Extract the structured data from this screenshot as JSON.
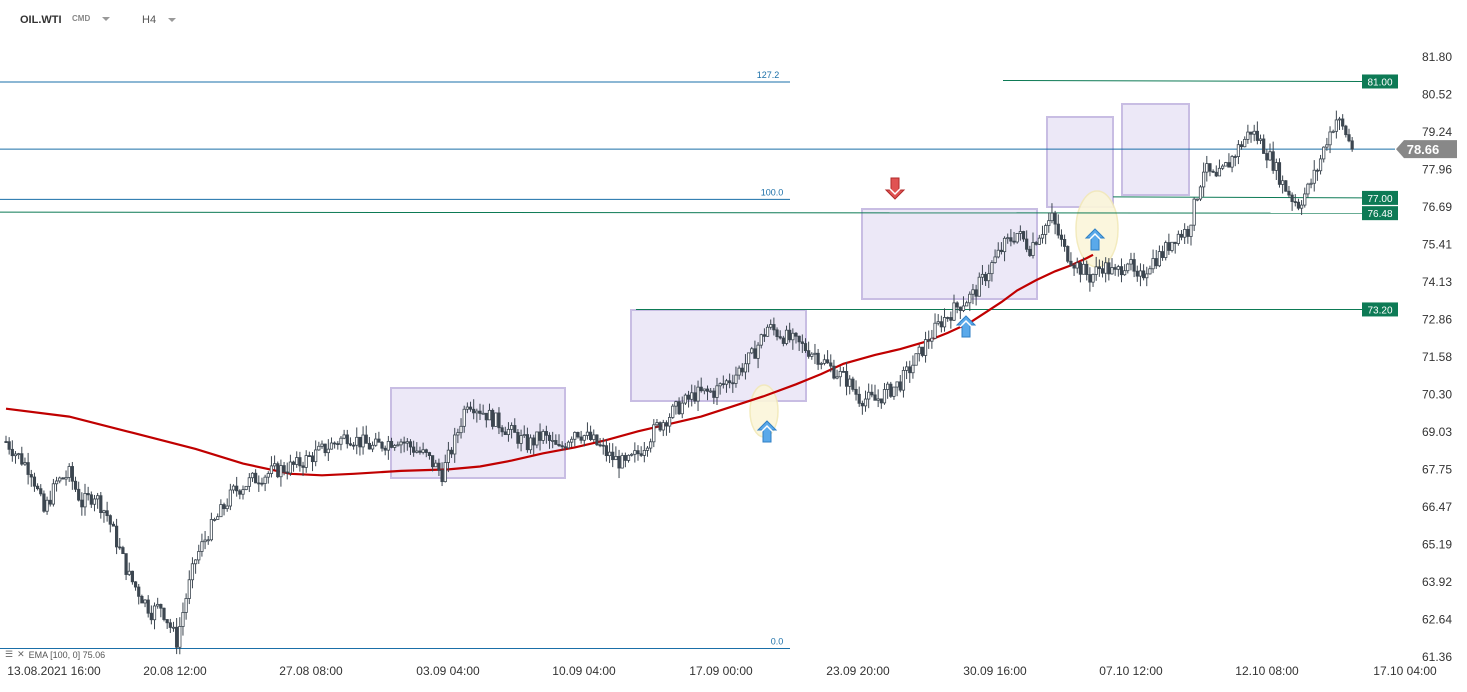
{
  "header": {
    "symbol": "OIL.WTI",
    "instrument_type": "CMD",
    "timeframe": "H4"
  },
  "indicator_legend": {
    "menu_icon": "hamburger-icon",
    "close_icon": "close-icon",
    "text": "EMA  [100,  0]  75.06"
  },
  "colors": {
    "bull": "#ffffff",
    "bear": "#3c4650",
    "ema": "#c00000",
    "fib": "#1a6fa8",
    "level": "#0d7a55",
    "level_tag_bg": "#0d7a55",
    "price_tag_bg": "#888888",
    "box_fill": "#ece8f7",
    "box_stroke": "#c8bde3",
    "up_arrow": "#5aa9ea",
    "down_arrow": "#e05252",
    "ellipse": "#f2e9b8"
  },
  "chart_data": {
    "type": "candlestick",
    "timeframe": "H4",
    "ylim": [
      61.36,
      81.8
    ],
    "y_ticks": [
      "81.80",
      "80.52",
      "79.24",
      "77.96",
      "76.69",
      "75.41",
      "74.13",
      "72.86",
      "71.58",
      "70.30",
      "69.03",
      "67.75",
      "66.47",
      "65.19",
      "63.92",
      "62.64",
      "61.36"
    ],
    "x_ticks": [
      "13.08.2021  16:00",
      "20.08  12:00",
      "27.08  08:00",
      "03.09  04:00",
      "10.09  04:00",
      "17.09  00:00",
      "23.09  20:00",
      "30.09  16:00",
      "07.10  12:00",
      "12.10  08:00",
      "17.10  04:00"
    ],
    "current_price": "78.66",
    "fib_levels": [
      {
        "label": "127.2",
        "value": 80.95
      },
      {
        "label": "100.0",
        "value": 76.95
      },
      {
        "label": "0.0",
        "value": 61.65
      }
    ],
    "price_levels": [
      "81.00",
      "77.00",
      "76.48",
      "73.20"
    ],
    "ema": {
      "name": "EMA",
      "period": 100,
      "last": 75.06
    },
    "ema_path": [
      [
        0,
        69.82
      ],
      [
        20,
        69.55
      ],
      [
        40,
        69.0
      ],
      [
        60,
        68.45
      ],
      [
        75,
        67.95
      ],
      [
        90,
        67.6
      ],
      [
        100,
        67.55
      ],
      [
        110,
        67.6
      ],
      [
        125,
        67.7
      ],
      [
        140,
        67.75
      ],
      [
        150,
        67.85
      ],
      [
        160,
        68.05
      ],
      [
        170,
        68.3
      ],
      [
        180,
        68.5
      ],
      [
        190,
        68.75
      ],
      [
        200,
        69.05
      ],
      [
        210,
        69.3
      ],
      [
        220,
        69.55
      ],
      [
        230,
        69.9
      ],
      [
        240,
        70.25
      ],
      [
        250,
        70.65
      ],
      [
        258,
        71.0
      ],
      [
        265,
        71.35
      ],
      [
        275,
        71.65
      ],
      [
        283,
        71.85
      ],
      [
        291,
        72.1
      ],
      [
        298,
        72.4
      ],
      [
        305,
        72.75
      ],
      [
        310,
        73.1
      ],
      [
        315,
        73.45
      ],
      [
        320,
        73.85
      ],
      [
        326,
        74.2
      ],
      [
        332,
        74.5
      ],
      [
        337,
        74.7
      ],
      [
        340,
        74.85
      ],
      [
        342,
        74.95
      ],
      [
        344,
        75.06
      ]
    ],
    "swing_path": [
      [
        0,
        68.7
      ],
      [
        4,
        68.2
      ],
      [
        8,
        67.7
      ],
      [
        12,
        66.3
      ],
      [
        16,
        67.3
      ],
      [
        20,
        67.6
      ],
      [
        24,
        66.6
      ],
      [
        28,
        66.9
      ],
      [
        32,
        66.2
      ],
      [
        36,
        65.0
      ],
      [
        39,
        64.1
      ],
      [
        43,
        63.4
      ],
      [
        46,
        62.9
      ],
      [
        49,
        63.1
      ],
      [
        52,
        62.4
      ],
      [
        54,
        61.9
      ],
      [
        57,
        63.4
      ],
      [
        60,
        64.7
      ],
      [
        64,
        65.6
      ],
      [
        68,
        66.3
      ],
      [
        72,
        67.0
      ],
      [
        78,
        67.4
      ],
      [
        85,
        67.7
      ],
      [
        92,
        67.9
      ],
      [
        100,
        68.4
      ],
      [
        108,
        68.9
      ],
      [
        116,
        68.5
      ],
      [
        124,
        68.8
      ],
      [
        133,
        68.2
      ],
      [
        138,
        67.6
      ],
      [
        142,
        68.7
      ],
      [
        146,
        70.1
      ],
      [
        150,
        69.8
      ],
      [
        155,
        69.4
      ],
      [
        160,
        69.0
      ],
      [
        165,
        68.6
      ],
      [
        170,
        68.9
      ],
      [
        175,
        68.4
      ],
      [
        180,
        69.1
      ],
      [
        186,
        68.7
      ],
      [
        191,
        68.2
      ],
      [
        196,
        67.9
      ],
      [
        200,
        68.3
      ],
      [
        206,
        69.2
      ],
      [
        212,
        69.8
      ],
      [
        218,
        70.3
      ],
      [
        224,
        70.4
      ],
      [
        230,
        70.9
      ],
      [
        236,
        71.6
      ],
      [
        241,
        72.6
      ],
      [
        246,
        72.3
      ],
      [
        251,
        72.0
      ],
      [
        256,
        71.7
      ],
      [
        261,
        71.2
      ],
      [
        266,
        70.8
      ],
      [
        270,
        70.2
      ],
      [
        275,
        70.1
      ],
      [
        279,
        70.4
      ],
      [
        283,
        70.7
      ],
      [
        288,
        71.5
      ],
      [
        292,
        72.2
      ],
      [
        296,
        72.8
      ],
      [
        301,
        73.3
      ],
      [
        306,
        73.7
      ],
      [
        309,
        74.2
      ],
      [
        313,
        74.9
      ],
      [
        316,
        75.4
      ],
      [
        320,
        75.8
      ],
      [
        324,
        75.3
      ],
      [
        327,
        75.8
      ],
      [
        331,
        76.3
      ],
      [
        335,
        75.2
      ],
      [
        339,
        74.7
      ],
      [
        343,
        74.3
      ],
      [
        347,
        74.7
      ],
      [
        351,
        74.4
      ],
      [
        355,
        74.9
      ],
      [
        358,
        74.1
      ],
      [
        362,
        74.8
      ],
      [
        366,
        75.1
      ],
      [
        370,
        75.7
      ],
      [
        374,
        75.9
      ],
      [
        376,
        76.7
      ],
      [
        379,
        78.0
      ],
      [
        383,
        77.6
      ],
      [
        387,
        78.2
      ],
      [
        390,
        78.7
      ],
      [
        394,
        79.3
      ],
      [
        397,
        78.9
      ],
      [
        401,
        78.2
      ],
      [
        404,
        77.5
      ],
      [
        407,
        77.0
      ],
      [
        409,
        76.8
      ],
      [
        412,
        77.3
      ],
      [
        415,
        78.0
      ],
      [
        418,
        79.0
      ],
      [
        421,
        79.7
      ],
      [
        424,
        79.2
      ],
      [
        426,
        78.66
      ]
    ]
  }
}
